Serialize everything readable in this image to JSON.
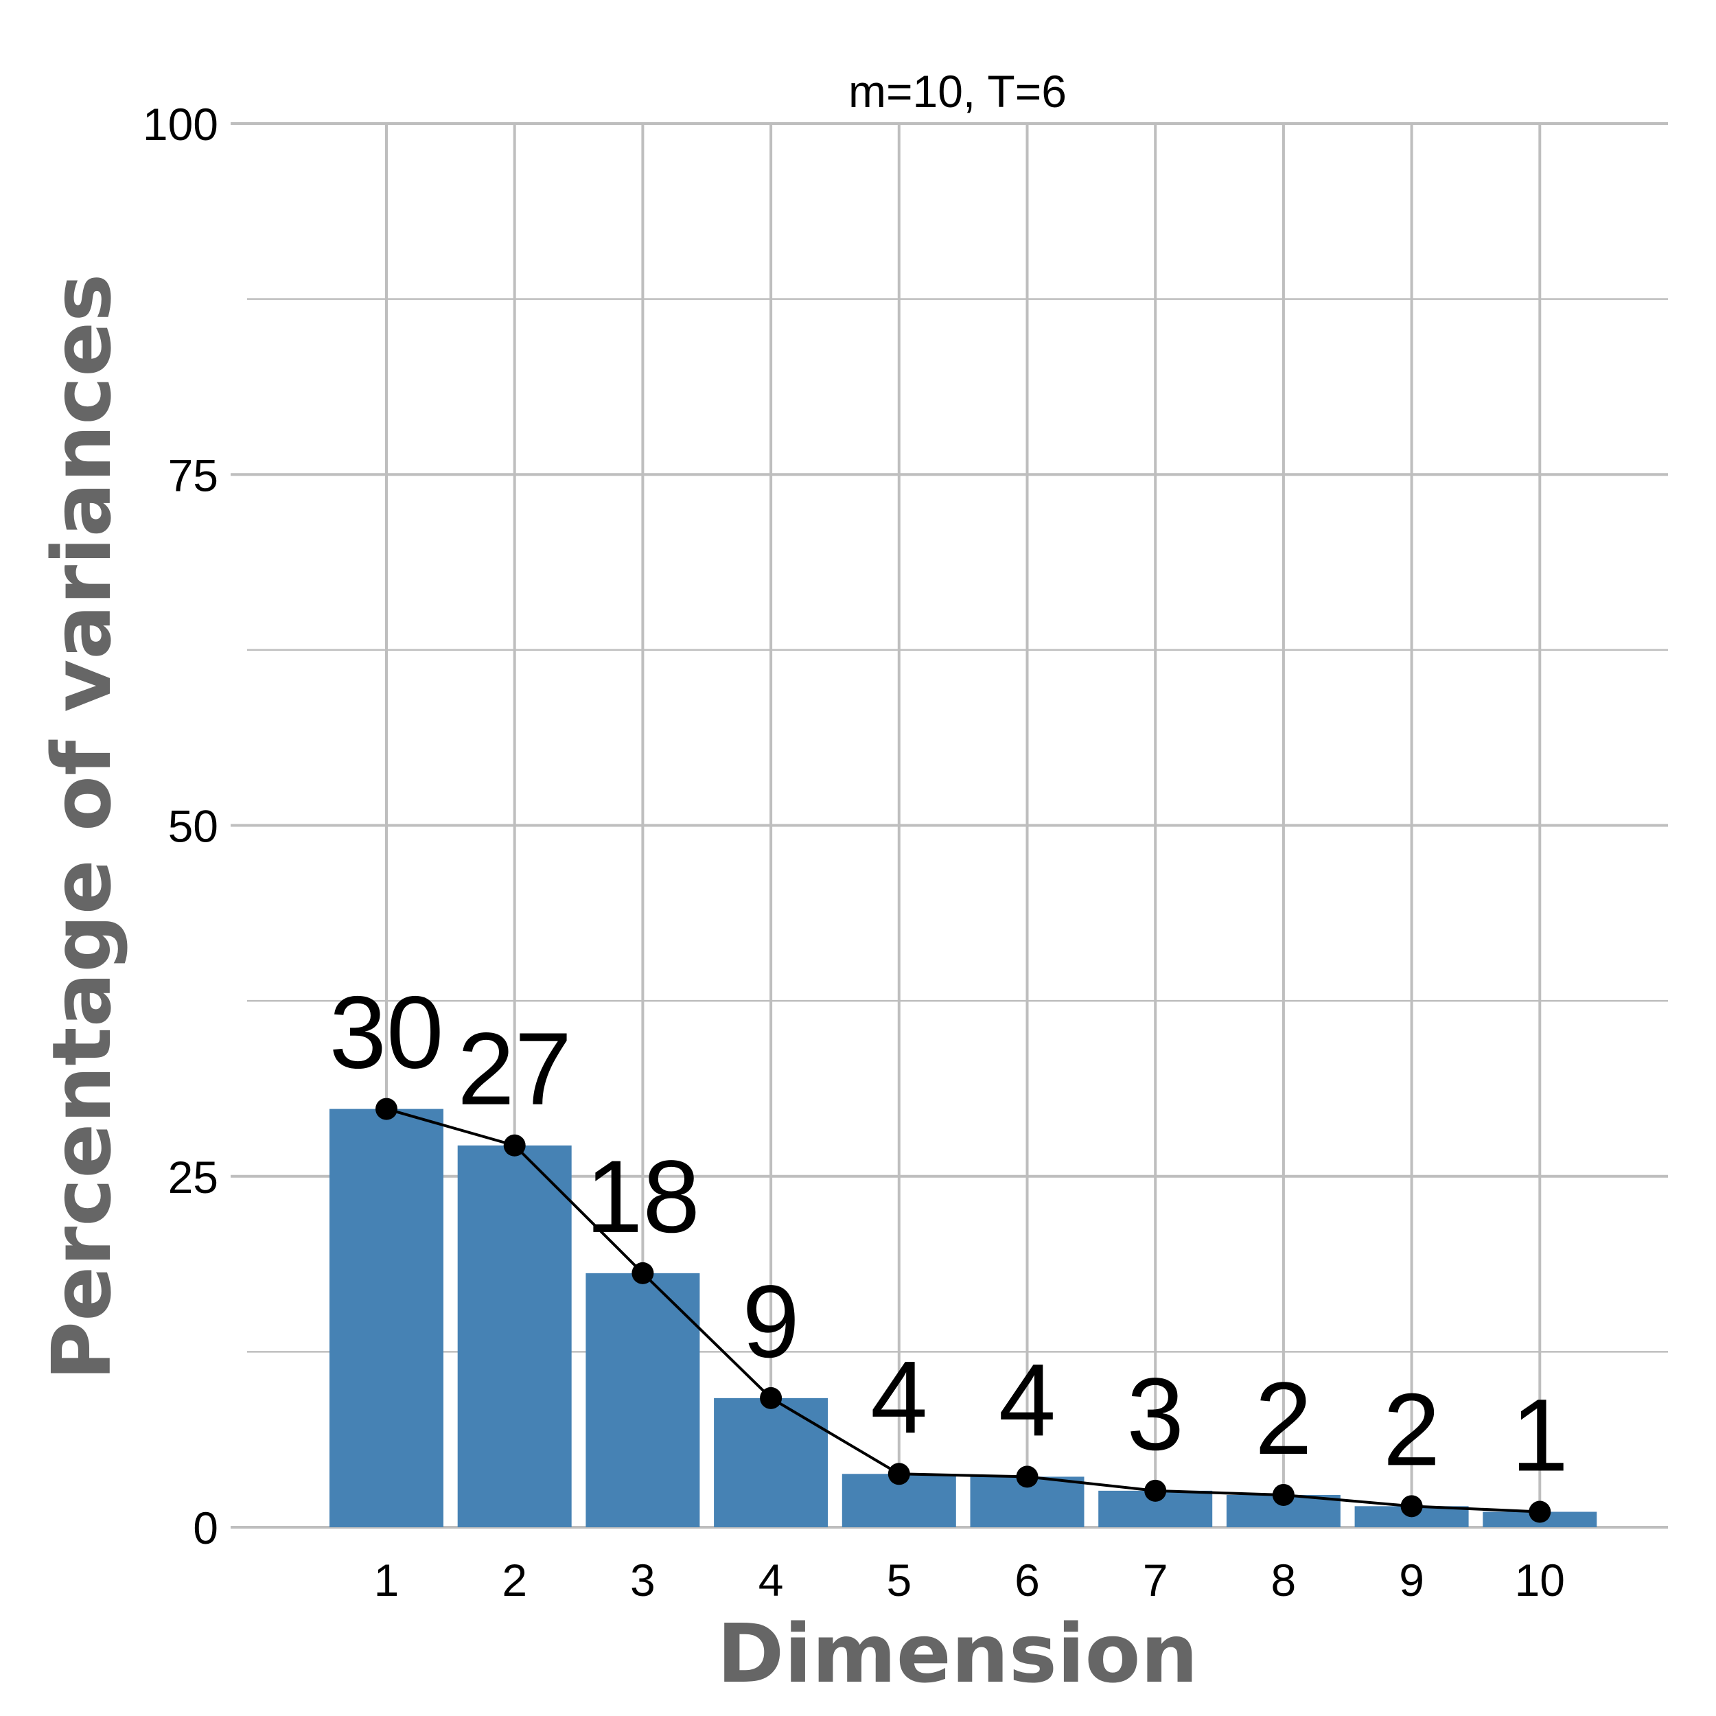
{
  "chart_data": {
    "type": "bar",
    "title": "m=10, T=6",
    "xlabel": "Dimension",
    "ylabel": "Percentage of variances",
    "categories": [
      "1",
      "2",
      "3",
      "4",
      "5",
      "6",
      "7",
      "8",
      "9",
      "10"
    ],
    "values": [
      29.8,
      27.2,
      18.1,
      9.2,
      3.8,
      3.6,
      2.6,
      2.3,
      1.5,
      1.1
    ],
    "data_labels": [
      "30",
      "27",
      "18",
      "9",
      "4",
      "4",
      "3",
      "2",
      "2",
      "1"
    ],
    "line_overlay": true,
    "ylim": [
      0,
      100
    ],
    "yticks": [
      "0",
      "25",
      "50",
      "75",
      "100"
    ],
    "grid": true,
    "legend": "none",
    "colors": {
      "bar": "#4682B4",
      "line": "#000000",
      "grid": "#BEBEBE",
      "axis_title": "#666666"
    }
  }
}
